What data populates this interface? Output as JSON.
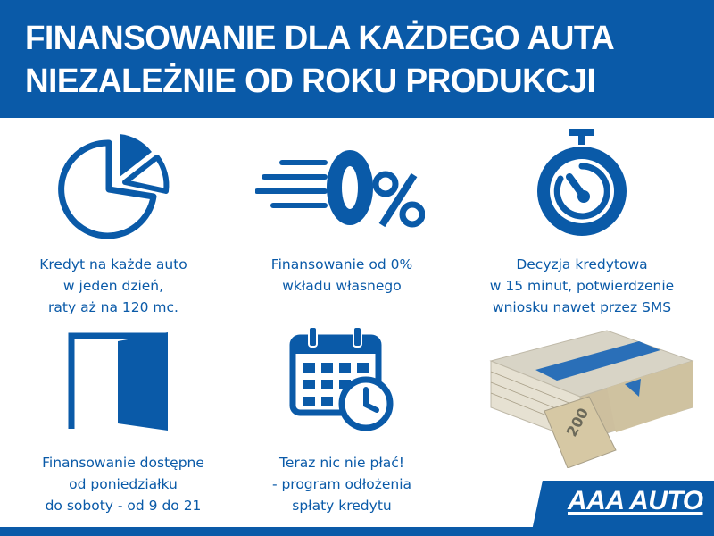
{
  "header": {
    "line1": "FINANSOWANIE DLA KAŻDEGO AUTA",
    "line2": "NIEZALEŻNIE OD ROKU PRODUKCJI"
  },
  "features": [
    {
      "icon": "pie-chart-icon",
      "lines": [
        "Kredyt na każde auto",
        "w jeden dzień,",
        "raty aż na 120 mc."
      ]
    },
    {
      "icon": "zero-percent-icon",
      "icon_text": "0%",
      "lines": [
        "Finansowanie od 0%",
        "wkładu własnego"
      ]
    },
    {
      "icon": "stopwatch-icon",
      "lines": [
        "Decyzja kredytowa",
        "w 15 minut, potwierdzenie",
        "wniosku nawet przez SMS"
      ]
    },
    {
      "icon": "door-icon",
      "lines": [
        "Finansowanie dostępne",
        "od poniedziałku",
        "do soboty - od 9 do 21"
      ]
    },
    {
      "icon": "calendar-clock-icon",
      "lines": [
        "Teraz nic nie płać!",
        "- program odłożenia",
        "spłaty kredytu"
      ]
    },
    {
      "icon": "money-stack-icon",
      "banknote_value": "200"
    }
  ],
  "brand": {
    "logo": "AAA AUTO",
    "color": "#0a5aa8"
  }
}
